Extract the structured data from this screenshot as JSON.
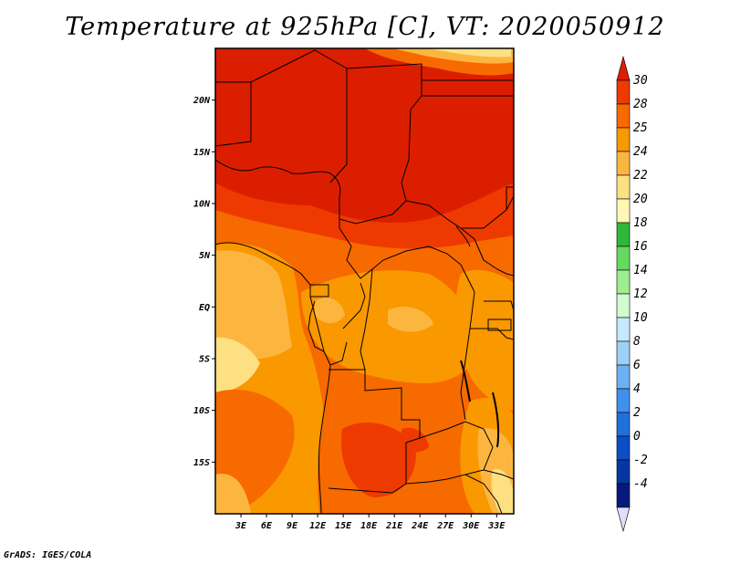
{
  "title": "Temperature at 925hPa [C], VT: 2020050912",
  "footer": "GrADS: IGES/COLA",
  "map": {
    "lat_labels": [
      "20N",
      "15N",
      "10N",
      "5N",
      "EQ",
      "5S",
      "10S",
      "15S"
    ],
    "lat_values": [
      20,
      15,
      10,
      5,
      0,
      -5,
      -10,
      -15
    ],
    "lon_labels": [
      "3E",
      "6E",
      "9E",
      "12E",
      "15E",
      "18E",
      "21E",
      "24E",
      "27E",
      "30E",
      "33E"
    ],
    "lon_values": [
      3,
      6,
      9,
      12,
      15,
      18,
      21,
      24,
      27,
      30,
      33
    ],
    "lon_range": [
      0,
      35
    ],
    "lat_range": [
      -20,
      25
    ]
  },
  "colorbar": {
    "labels": [
      "30",
      "28",
      "25",
      "24",
      "22",
      "20",
      "18",
      "16",
      "14",
      "12",
      "10",
      "8",
      "6",
      "4",
      "2",
      "0",
      "-2",
      "-4"
    ],
    "colors": [
      "#dc1e00",
      "#ee3a00",
      "#f76a00",
      "#fa9800",
      "#fcb640",
      "#fde082",
      "#fff8b4",
      "#2eb83a",
      "#66d95f",
      "#9eed91",
      "#d2fbcf",
      "#c7e9fd",
      "#9dd0f7",
      "#6cb1f3",
      "#4091ec",
      "#2070dc",
      "#0c4fc4",
      "#0536a4",
      "#051a7a",
      "#e0dff7"
    ]
  },
  "colors": {
    "hot": "#dc1e00",
    "warm": "#f76a00",
    "mild": "#fa9800",
    "cool": "#fcb640",
    "pale": "#fde082"
  }
}
